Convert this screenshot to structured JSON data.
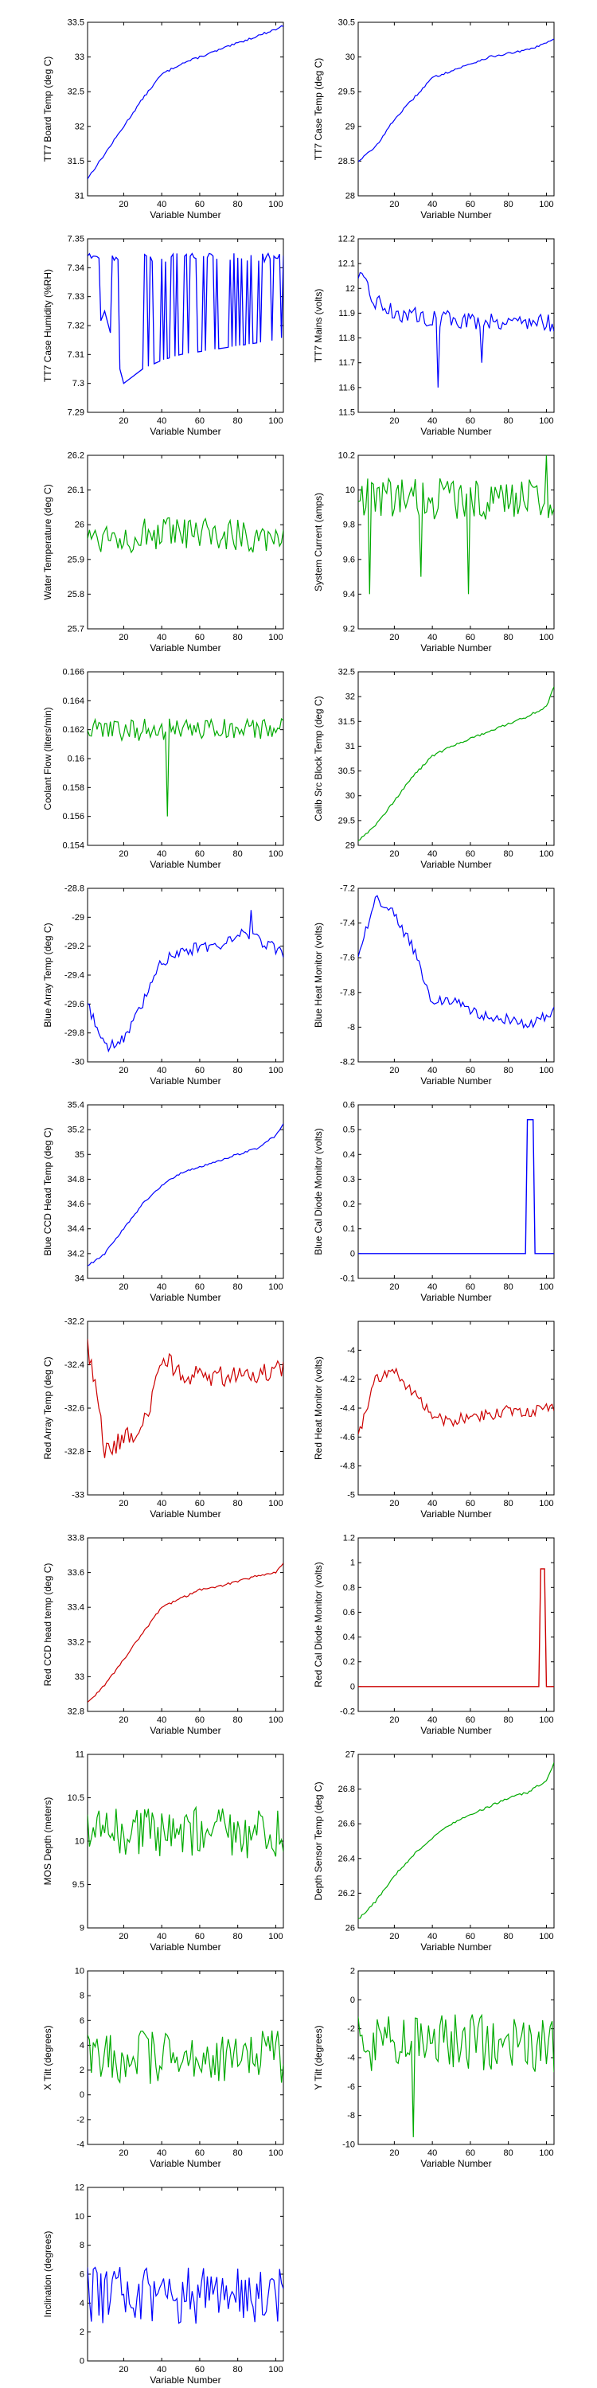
{
  "figure": {
    "background": "#ffffff",
    "axis_color": "#000000"
  },
  "chart_data": [
    {
      "type": "line",
      "xlabel": "Variable Number",
      "ylabel": "TT7 Board Temp (deg C)",
      "ylim": [
        31,
        33.5
      ],
      "yticks": [
        "31",
        "31.5",
        "32",
        "32.5",
        "33",
        "33.5"
      ],
      "xlim": [
        1,
        104
      ],
      "xticks": [
        "20",
        "40",
        "60",
        "80",
        "100"
      ],
      "color": "#0000ff",
      "style": "trend",
      "series": [
        {
          "x": [
            1,
            10,
            20,
            30,
            40,
            50,
            60,
            70,
            80,
            90,
            100,
            104
          ],
          "values": [
            31.25,
            31.6,
            32.0,
            32.4,
            32.75,
            32.9,
            33.0,
            33.1,
            33.2,
            33.3,
            33.4,
            33.45
          ]
        }
      ]
    },
    {
      "type": "line",
      "xlabel": "Variable Number",
      "ylabel": "TT7 Case Temp (deg C)",
      "ylim": [
        28,
        30.5
      ],
      "yticks": [
        "28",
        "28.5",
        "29",
        "29.5",
        "30",
        "30.5"
      ],
      "xlim": [
        1,
        104
      ],
      "xticks": [
        "20",
        "40",
        "60",
        "80",
        "100"
      ],
      "color": "#0000ff",
      "style": "trend",
      "series": [
        {
          "x": [
            1,
            10,
            20,
            30,
            40,
            50,
            60,
            70,
            80,
            90,
            100,
            104
          ],
          "values": [
            28.5,
            28.7,
            29.1,
            29.4,
            29.7,
            29.8,
            29.9,
            30.0,
            30.05,
            30.1,
            30.2,
            30.25
          ]
        }
      ]
    },
    {
      "type": "line",
      "xlabel": "Variable Number",
      "ylabel": "TT7 Case Humidity (%RH)",
      "ylim": [
        7.29,
        7.35
      ],
      "yticks": [
        "7.29",
        "7.3",
        "7.31",
        "7.32",
        "7.33",
        "7.34",
        "7.35"
      ],
      "xlim": [
        1,
        104
      ],
      "xticks": [
        "20",
        "40",
        "60",
        "80",
        "100"
      ],
      "color": "#0000ff",
      "style": "switch",
      "series": [
        {
          "x": [
            1,
            10,
            20,
            30,
            40,
            50,
            60,
            70,
            80,
            90,
            100,
            104
          ],
          "values": [
            7.31,
            7.325,
            7.3,
            7.305,
            7.308,
            7.31,
            7.311,
            7.312,
            7.313,
            7.314,
            7.315,
            7.316
          ]
        },
        {
          "x": [
            1,
            104
          ],
          "values": [
            7.345,
            7.345
          ]
        }
      ]
    },
    {
      "type": "line",
      "xlabel": "Variable Number",
      "ylabel": "TT7 Mains  (volts)",
      "ylim": [
        11.5,
        12.2
      ],
      "yticks": [
        "11.5",
        "11.6",
        "11.7",
        "11.8",
        "11.9",
        "12",
        "12.1",
        "12.2"
      ],
      "xlim": [
        1,
        104
      ],
      "xticks": [
        "20",
        "40",
        "60",
        "80",
        "100"
      ],
      "color": "#0000ff",
      "style": "noise",
      "series": [
        {
          "x": [
            1,
            10,
            20,
            40,
            60,
            80,
            104
          ],
          "values": [
            12.05,
            11.95,
            11.9,
            11.88,
            11.87,
            11.87,
            11.86
          ]
        }
      ],
      "noise": 0.035,
      "spikes": [
        [
          43,
          11.6
        ],
        [
          66,
          11.7
        ]
      ]
    },
    {
      "type": "line",
      "xlabel": "Variable Number",
      "ylabel": "Water Temperature (deg C)",
      "ylim": [
        25.7,
        26.2
      ],
      "yticks": [
        "25.7",
        "25.8",
        "25.9",
        "26",
        "26.1",
        "26.2"
      ],
      "xlim": [
        1,
        104
      ],
      "xticks": [
        "20",
        "40",
        "60",
        "80",
        "100"
      ],
      "color": "#00aa00",
      "style": "noise",
      "series": [
        {
          "x": [
            1,
            104
          ],
          "values": [
            25.97,
            25.97
          ]
        }
      ],
      "noise": 0.05,
      "spikes": []
    },
    {
      "type": "line",
      "xlabel": "Variable Number",
      "ylabel": "System Current (amps)",
      "ylim": [
        9.2,
        10.2
      ],
      "yticks": [
        "9.2",
        "9.4",
        "9.6",
        "9.8",
        "10",
        "10.2"
      ],
      "xlim": [
        1,
        104
      ],
      "xticks": [
        "20",
        "40",
        "60",
        "80",
        "100"
      ],
      "color": "#00aa00",
      "style": "noise",
      "series": [
        {
          "x": [
            1,
            104
          ],
          "values": [
            9.95,
            9.95
          ]
        }
      ],
      "noise": 0.12,
      "spikes": [
        [
          7,
          9.4
        ],
        [
          34,
          9.5
        ],
        [
          59,
          9.4
        ],
        [
          100,
          10.2
        ]
      ]
    },
    {
      "type": "line",
      "xlabel": "Variable Number",
      "ylabel": "Coolant Flow (liters/min)",
      "ylim": [
        0.154,
        0.166
      ],
      "yticks": [
        "0.154",
        "0.156",
        "0.158",
        "0.16",
        "0.162",
        "0.164",
        "0.166"
      ],
      "xlim": [
        1,
        104
      ],
      "xticks": [
        "20",
        "40",
        "60",
        "80",
        "100"
      ],
      "color": "#00aa00",
      "style": "noise",
      "series": [
        {
          "x": [
            1,
            104
          ],
          "values": [
            0.162,
            0.162
          ]
        }
      ],
      "noise": 0.0008,
      "spikes": [
        [
          43,
          0.156
        ]
      ]
    },
    {
      "type": "line",
      "xlabel": "Variable Number",
      "ylabel": "Calib Src Block Temp (deg C)",
      "ylim": [
        29,
        32.5
      ],
      "yticks": [
        "29",
        "29.5",
        "30",
        "30.5",
        "31",
        "31.5",
        "32",
        "32.5"
      ],
      "xlim": [
        1,
        104
      ],
      "xticks": [
        "20",
        "40",
        "60",
        "80",
        "100"
      ],
      "color": "#00aa00",
      "style": "trend",
      "series": [
        {
          "x": [
            1,
            10,
            20,
            30,
            40,
            50,
            60,
            70,
            80,
            90,
            100,
            104
          ],
          "values": [
            29.1,
            29.4,
            29.9,
            30.4,
            30.8,
            31.0,
            31.15,
            31.3,
            31.45,
            31.6,
            31.8,
            32.2
          ]
        }
      ]
    },
    {
      "type": "line",
      "xlabel": "Variable Number",
      "ylabel": "Blue Array Temp (deg C)",
      "ylim": [
        -30,
        -28.8
      ],
      "yticks": [
        "-30",
        "-29.8",
        "-29.6",
        "-29.4",
        "-29.2",
        "-29",
        "-28.8"
      ],
      "xlim": [
        1,
        104
      ],
      "xticks": [
        "20",
        "40",
        "60",
        "80",
        "100"
      ],
      "color": "#0000ff",
      "style": "noise",
      "series": [
        {
          "x": [
            1,
            10,
            20,
            30,
            40,
            50,
            60,
            70,
            80,
            90,
            104
          ],
          "values": [
            -29.6,
            -29.9,
            -29.85,
            -29.6,
            -29.3,
            -29.25,
            -29.2,
            -29.2,
            -29.1,
            -29.15,
            -29.25
          ]
        }
      ],
      "noise": 0.04,
      "spikes": [
        [
          87,
          -28.95
        ]
      ]
    },
    {
      "type": "line",
      "xlabel": "Variable Number",
      "ylabel": "Blue Heat Monitor (volts)",
      "ylim": [
        -8.2,
        -7.2
      ],
      "yticks": [
        "-8.2",
        "-8",
        "-7.8",
        "-7.6",
        "-7.4",
        "-7.2"
      ],
      "xlim": [
        1,
        104
      ],
      "xticks": [
        "20",
        "40",
        "60",
        "80",
        "100"
      ],
      "color": "#0000ff",
      "style": "noise",
      "series": [
        {
          "x": [
            1,
            10,
            20,
            30,
            40,
            50,
            60,
            70,
            80,
            90,
            104
          ],
          "values": [
            -7.6,
            -7.25,
            -7.35,
            -7.55,
            -7.85,
            -7.85,
            -7.9,
            -7.95,
            -7.95,
            -8.0,
            -7.9
          ]
        }
      ],
      "noise": 0.03,
      "spikes": []
    },
    {
      "type": "line",
      "xlabel": "Variable Number",
      "ylabel": "Blue CCD Head Temp (deg C)",
      "ylim": [
        34,
        35.4
      ],
      "yticks": [
        "34",
        "34.2",
        "34.4",
        "34.6",
        "34.8",
        "35",
        "35.2",
        "35.4"
      ],
      "xlim": [
        1,
        104
      ],
      "xticks": [
        "20",
        "40",
        "60",
        "80",
        "100"
      ],
      "color": "#0000ff",
      "style": "trend",
      "series": [
        {
          "x": [
            1,
            10,
            20,
            30,
            40,
            50,
            60,
            70,
            80,
            90,
            100,
            104
          ],
          "values": [
            34.1,
            34.2,
            34.4,
            34.6,
            34.75,
            34.85,
            34.9,
            34.95,
            35.0,
            35.05,
            35.15,
            35.25
          ]
        }
      ]
    },
    {
      "type": "line",
      "xlabel": "Variable Number",
      "ylabel": "Blue Cal Diode Monitor (volts)",
      "ylim": [
        -0.1,
        0.6
      ],
      "yticks": [
        "-0.1",
        "0",
        "0.1",
        "0.2",
        "0.3",
        "0.4",
        "0.5",
        "0.6"
      ],
      "xlim": [
        1,
        104
      ],
      "xticks": [
        "20",
        "40",
        "60",
        "80",
        "100"
      ],
      "color": "#0000ff",
      "style": "pulse",
      "series": [
        {
          "x": [
            1,
            89,
            90,
            93,
            94,
            104
          ],
          "values": [
            0,
            0,
            0.54,
            0.54,
            0,
            0
          ]
        }
      ]
    },
    {
      "type": "line",
      "xlabel": "Variable Number",
      "ylabel": "Red Array Temp (deg C)",
      "ylim": [
        -33,
        -32.2
      ],
      "yticks": [
        "-33",
        "-32.8",
        "-32.6",
        "-32.4",
        "-32.2"
      ],
      "xlim": [
        1,
        104
      ],
      "xticks": [
        "20",
        "40",
        "60",
        "80",
        "100"
      ],
      "color": "#cc0000",
      "style": "noise",
      "series": [
        {
          "x": [
            1,
            5,
            10,
            20,
            30,
            38,
            40,
            50,
            60,
            70,
            80,
            90,
            104
          ],
          "values": [
            -32.3,
            -32.5,
            -32.8,
            -32.75,
            -32.7,
            -32.45,
            -32.35,
            -32.45,
            -32.45,
            -32.45,
            -32.45,
            -32.45,
            -32.4
          ]
        }
      ],
      "noise": 0.05,
      "spikes": []
    },
    {
      "type": "line",
      "xlabel": "Variable Number",
      "ylabel": "Red Heat Monitor (volts)",
      "ylim": [
        -5,
        -3.8
      ],
      "yticks": [
        "-5",
        "-4.8",
        "-4.6",
        "-4.4",
        "-4.2",
        "-4"
      ],
      "xlim": [
        1,
        104
      ],
      "xticks": [
        "20",
        "40",
        "60",
        "80",
        "100"
      ],
      "color": "#cc0000",
      "style": "noise",
      "series": [
        {
          "x": [
            1,
            10,
            20,
            30,
            40,
            50,
            60,
            70,
            80,
            90,
            104
          ],
          "values": [
            -4.6,
            -4.2,
            -4.15,
            -4.3,
            -4.45,
            -4.5,
            -4.45,
            -4.45,
            -4.42,
            -4.42,
            -4.4
          ]
        }
      ],
      "noise": 0.04,
      "spikes": []
    },
    {
      "type": "line",
      "xlabel": "Variable Number",
      "ylabel": "Red CCD head temp (deg C)",
      "ylim": [
        32.8,
        33.8
      ],
      "yticks": [
        "32.8",
        "33",
        "33.2",
        "33.4",
        "33.6",
        "33.8"
      ],
      "xlim": [
        1,
        104
      ],
      "xticks": [
        "20",
        "40",
        "60",
        "80",
        "100"
      ],
      "color": "#cc0000",
      "style": "trend",
      "series": [
        {
          "x": [
            1,
            10,
            20,
            30,
            40,
            50,
            60,
            70,
            80,
            90,
            100,
            104
          ],
          "values": [
            32.85,
            32.95,
            33.1,
            33.25,
            33.4,
            33.45,
            33.5,
            33.52,
            33.55,
            33.58,
            33.6,
            33.65
          ]
        }
      ]
    },
    {
      "type": "line",
      "xlabel": "Variable Number",
      "ylabel": "Red Cal Diode Monitor (volts)",
      "ylim": [
        -0.2,
        1.2
      ],
      "yticks": [
        "-0.2",
        "0",
        "0.2",
        "0.4",
        "0.6",
        "0.8",
        "1",
        "1.2"
      ],
      "xlim": [
        1,
        104
      ],
      "xticks": [
        "20",
        "40",
        "60",
        "80",
        "100"
      ],
      "color": "#cc0000",
      "style": "pulse",
      "series": [
        {
          "x": [
            1,
            96,
            97,
            99,
            100,
            104
          ],
          "values": [
            0,
            0,
            0.95,
            0.95,
            0,
            0
          ]
        }
      ]
    },
    {
      "type": "line",
      "xlabel": "Variable Number",
      "ylabel": "MOS Depth  (meters)",
      "ylim": [
        9,
        11
      ],
      "yticks": [
        "9",
        "9.5",
        "10",
        "10.5",
        "11"
      ],
      "xlim": [
        1,
        104
      ],
      "xticks": [
        "20",
        "40",
        "60",
        "80",
        "100"
      ],
      "color": "#00aa00",
      "style": "noise",
      "series": [
        {
          "x": [
            1,
            104
          ],
          "values": [
            10.1,
            10.1
          ]
        }
      ],
      "noise": 0.3,
      "spikes": []
    },
    {
      "type": "line",
      "xlabel": "Variable Number",
      "ylabel": "Depth Sensor Temp (deg C)",
      "ylim": [
        26,
        27
      ],
      "yticks": [
        "26",
        "26.2",
        "26.4",
        "26.6",
        "26.8",
        "27"
      ],
      "xlim": [
        1,
        104
      ],
      "xticks": [
        "20",
        "40",
        "60",
        "80",
        "100"
      ],
      "color": "#00aa00",
      "style": "trend",
      "series": [
        {
          "x": [
            1,
            10,
            20,
            30,
            40,
            50,
            60,
            70,
            80,
            90,
            100,
            104
          ],
          "values": [
            26.05,
            26.15,
            26.3,
            26.42,
            26.52,
            26.6,
            26.65,
            26.7,
            26.75,
            26.78,
            26.85,
            26.95
          ]
        }
      ]
    },
    {
      "type": "line",
      "xlabel": "Variable Number",
      "ylabel": "X Tilt  (degrees)",
      "ylim": [
        -4,
        10
      ],
      "yticks": [
        "-4",
        "-2",
        "0",
        "2",
        "4",
        "6",
        "8",
        "10"
      ],
      "xlim": [
        1,
        104
      ],
      "xticks": [
        "20",
        "40",
        "60",
        "80",
        "100"
      ],
      "color": "#00aa00",
      "style": "noise",
      "series": [
        {
          "x": [
            1,
            104
          ],
          "values": [
            3,
            3
          ]
        }
      ],
      "noise": 2.2,
      "spikes": []
    },
    {
      "type": "line",
      "xlabel": "Variable Number",
      "ylabel": "Y Tilt  (degrees)",
      "ylim": [
        -10,
        2
      ],
      "yticks": [
        "-10",
        "-8",
        "-6",
        "-4",
        "-2",
        "0",
        "2"
      ],
      "xlim": [
        1,
        104
      ],
      "xticks": [
        "20",
        "40",
        "60",
        "80",
        "100"
      ],
      "color": "#00aa00",
      "style": "noise",
      "series": [
        {
          "x": [
            1,
            104
          ],
          "values": [
            -3,
            -3
          ]
        }
      ],
      "noise": 2.0,
      "spikes": [
        [
          30,
          -9.5
        ]
      ]
    },
    {
      "type": "line",
      "xlabel": "Variable Number",
      "ylabel": "Inclination  (degrees)",
      "ylim": [
        0,
        12
      ],
      "yticks": [
        "0",
        "2",
        "4",
        "6",
        "8",
        "10",
        "12"
      ],
      "xlim": [
        1,
        104
      ],
      "xticks": [
        "20",
        "40",
        "60",
        "80",
        "100"
      ],
      "color": "#0000ff",
      "style": "noise",
      "series": [
        {
          "x": [
            1,
            104
          ],
          "values": [
            4.5,
            4.5
          ]
        }
      ],
      "noise": 2.0,
      "spikes": []
    }
  ]
}
